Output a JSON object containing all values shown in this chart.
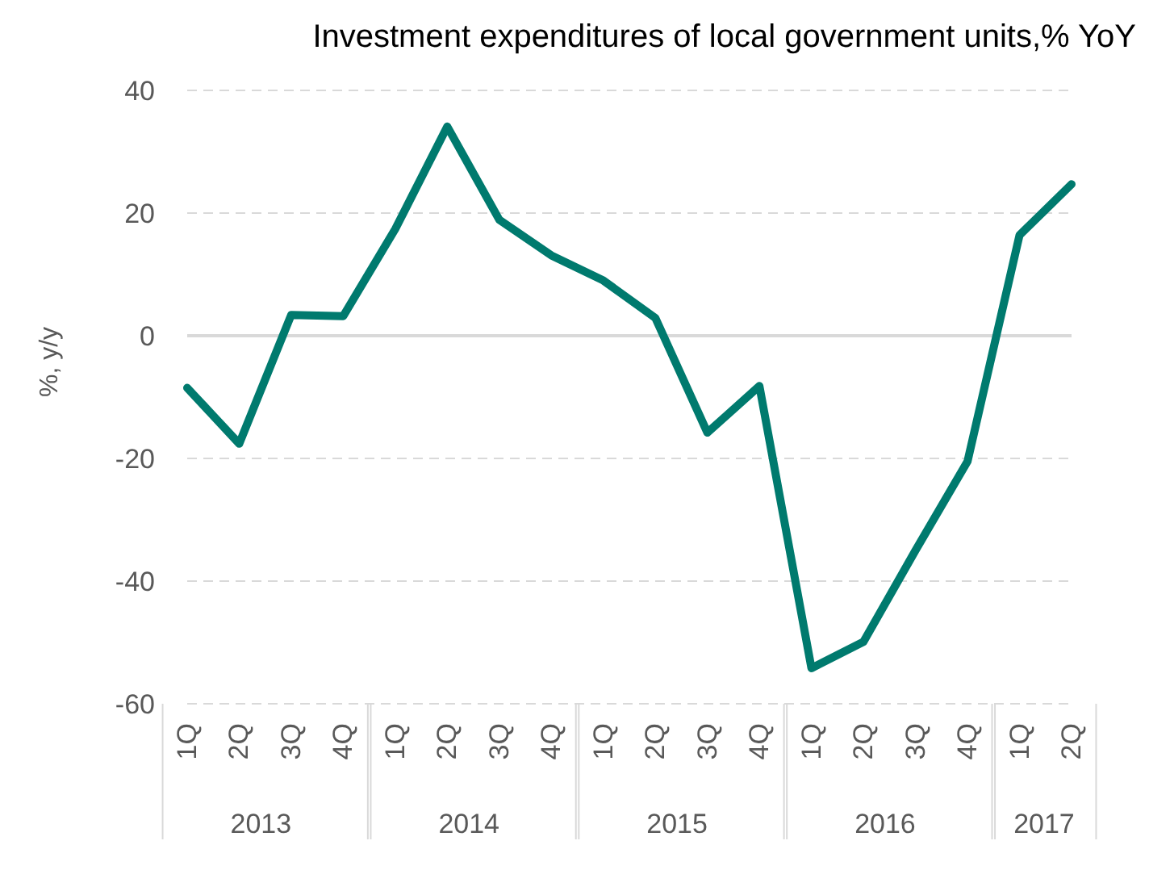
{
  "chart_data": {
    "type": "line",
    "title": "Investment expenditures of local government units,% YoY",
    "ylabel": "%, y/y",
    "categories": [
      "1Q",
      "2Q",
      "3Q",
      "4Q",
      "1Q",
      "2Q",
      "3Q",
      "4Q",
      "1Q",
      "2Q",
      "3Q",
      "4Q",
      "1Q",
      "2Q",
      "3Q",
      "4Q",
      "1Q",
      "2Q"
    ],
    "annotations": [
      "2013",
      "2014",
      "2015",
      "2016",
      "2017"
    ],
    "series": [
      {
        "color": "#007a6e",
        "values": [
          -8.5,
          -17.6,
          3.4,
          3.2,
          17.4,
          34.1,
          18.9,
          13.1,
          9.0,
          2.9,
          -15.8,
          -8.2,
          -54.2,
          -49.9,
          -35.0,
          -20.5,
          16.4,
          24.7
        ]
      }
    ],
    "ylim": [
      -60,
      40
    ],
    "yticks": [
      -60,
      -40,
      -20,
      0,
      20,
      40
    ],
    "grid": "y",
    "marker": "none",
    "line_style": "solid",
    "ref_lines": [
      {
        "axis": "y",
        "value": 0,
        "color": "#d9d9d9",
        "line_style": "solid"
      }
    ]
  }
}
